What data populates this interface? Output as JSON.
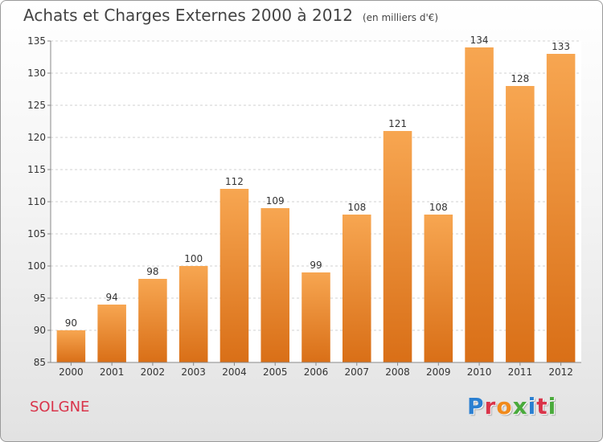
{
  "header": {
    "title": "Achats et Charges Externes 2000 à 2012",
    "subtitle": "(en milliers d'€)"
  },
  "footer": {
    "commune": "SOLGNE",
    "logo": "Proxiti"
  },
  "colors": {
    "bar_top": "#f7a651",
    "bar_bottom": "#d96f17",
    "commune": "#d9344a",
    "logo_letters": [
      "#2a7fd1",
      "#d9344a",
      "#f08a1c",
      "#4aaa3c",
      "#2a7fd1",
      "#d9344a",
      "#4aaa3c"
    ]
  },
  "chart_data": {
    "type": "bar",
    "categories": [
      "2000",
      "2001",
      "2002",
      "2003",
      "2004",
      "2005",
      "2006",
      "2007",
      "2008",
      "2009",
      "2010",
      "2011",
      "2012"
    ],
    "values": [
      90,
      94,
      98,
      100,
      112,
      109,
      99,
      108,
      121,
      108,
      134,
      128,
      133
    ],
    "ylim": [
      85,
      135
    ],
    "yticks": [
      85,
      90,
      95,
      100,
      105,
      110,
      115,
      120,
      125,
      130,
      135
    ],
    "grid": true,
    "data_labels": true
  }
}
